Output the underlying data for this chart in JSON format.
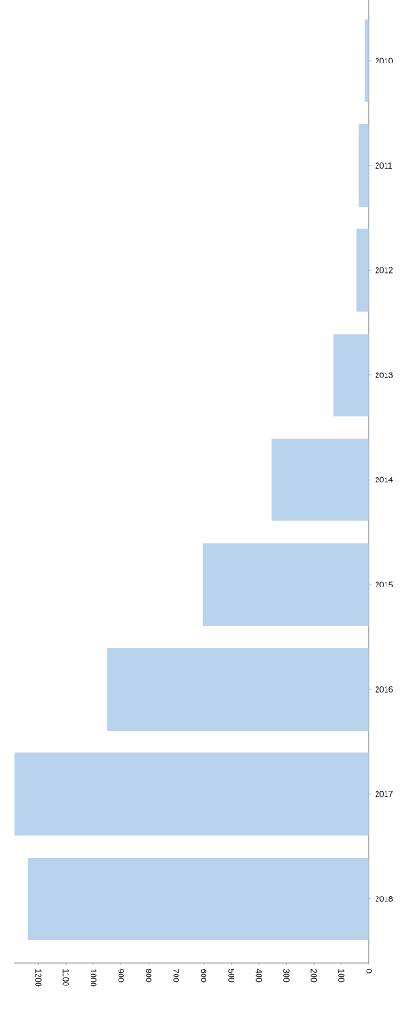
{
  "chart_data": {
    "type": "bar",
    "orientation": "horizontal",
    "categories": [
      "2010",
      "2011",
      "2012",
      "2013",
      "2014",
      "2015",
      "2016",
      "2017",
      "2018"
    ],
    "values": [
      16,
      36,
      47,
      129,
      355,
      604,
      951,
      1285,
      1238
    ],
    "color": "#b8d2ec",
    "xlim": [
      1290,
      0
    ],
    "xticks": [
      0,
      100,
      200,
      300,
      400,
      500,
      600,
      700,
      800,
      900,
      1000,
      1100,
      1200
    ],
    "grid": false
  }
}
